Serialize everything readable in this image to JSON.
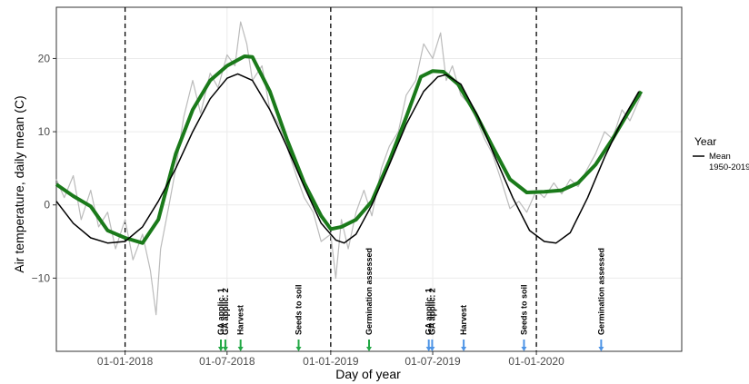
{
  "chart_data": {
    "type": "line",
    "title": "",
    "xlabel": "Day of year",
    "ylabel": "Air temperature, daily mean (C)",
    "xlim": [
      "2017-09-01",
      "2020-09-15"
    ],
    "ylim": [
      -20,
      27
    ],
    "grid": true,
    "x_ticks": [
      {
        "date": "2018-01-01",
        "label": "01-01-2018"
      },
      {
        "date": "2018-07-01",
        "label": "01-07-2018"
      },
      {
        "date": "2019-01-01",
        "label": "01-01-2019"
      },
      {
        "date": "2019-07-01",
        "label": "01-07-2019"
      },
      {
        "date": "2020-01-01",
        "label": "01-01-2020"
      }
    ],
    "y_ticks": [
      -10,
      0,
      10,
      20
    ],
    "vlines": [
      "2018-01-01",
      "2019-01-01",
      "2020-01-01"
    ],
    "legend": {
      "title": "Year",
      "position": "right",
      "entries": [
        {
          "label_lines": [
            "Mean",
            "1950-2019"
          ],
          "color": "#000000"
        }
      ]
    },
    "series": [
      {
        "name": "Mean 1950-2019",
        "color": "#000000",
        "points": [
          [
            "2017-09-01",
            0.5
          ],
          [
            "2017-10-01",
            -2.5
          ],
          [
            "2017-11-01",
            -4.5
          ],
          [
            "2017-12-01",
            -5.2
          ],
          [
            "2018-01-01",
            -5.0
          ],
          [
            "2018-02-01",
            -3.0
          ],
          [
            "2018-03-01",
            0.5
          ],
          [
            "2018-04-01",
            5.0
          ],
          [
            "2018-05-01",
            10.0
          ],
          [
            "2018-06-01",
            14.5
          ],
          [
            "2018-07-01",
            17.3
          ],
          [
            "2018-07-20",
            17.9
          ],
          [
            "2018-08-15",
            17.0
          ],
          [
            "2018-09-15",
            13.0
          ],
          [
            "2018-10-15",
            8.0
          ],
          [
            "2018-11-15",
            2.5
          ],
          [
            "2018-12-15",
            -2.5
          ],
          [
            "2019-01-10",
            -4.8
          ],
          [
            "2019-01-25",
            -5.2
          ],
          [
            "2019-02-15",
            -4.0
          ],
          [
            "2019-03-15",
            0.0
          ],
          [
            "2019-04-15",
            5.5
          ],
          [
            "2019-05-15",
            11.0
          ],
          [
            "2019-06-15",
            15.5
          ],
          [
            "2019-07-10",
            17.5
          ],
          [
            "2019-07-25",
            17.8
          ],
          [
            "2019-08-20",
            16.5
          ],
          [
            "2019-09-20",
            12.0
          ],
          [
            "2019-10-20",
            6.5
          ],
          [
            "2019-11-20",
            1.0
          ],
          [
            "2019-12-20",
            -3.5
          ],
          [
            "2020-01-15",
            -5.0
          ],
          [
            "2020-02-05",
            -5.2
          ],
          [
            "2020-03-01",
            -3.8
          ],
          [
            "2020-04-01",
            1.0
          ],
          [
            "2020-05-01",
            6.5
          ],
          [
            "2020-06-01",
            11.5
          ],
          [
            "2020-07-01",
            15.5
          ]
        ]
      },
      {
        "name": "",
        "color": "#1a7a1a",
        "points": [
          [
            "2017-09-01",
            2.8
          ],
          [
            "2017-10-01",
            1.2
          ],
          [
            "2017-11-01",
            -0.2
          ],
          [
            "2017-12-01",
            -3.5
          ],
          [
            "2018-01-01",
            -4.5
          ],
          [
            "2018-02-01",
            -5.2
          ],
          [
            "2018-03-01",
            -2.0
          ],
          [
            "2018-04-01",
            7.0
          ],
          [
            "2018-05-01",
            13.0
          ],
          [
            "2018-06-01",
            17.0
          ],
          [
            "2018-07-01",
            19.0
          ],
          [
            "2018-08-01",
            20.3
          ],
          [
            "2018-08-15",
            20.2
          ],
          [
            "2018-09-15",
            15.5
          ],
          [
            "2018-10-15",
            9.0
          ],
          [
            "2018-11-15",
            3.0
          ],
          [
            "2018-12-15",
            -1.5
          ],
          [
            "2019-01-01",
            -3.3
          ],
          [
            "2019-01-20",
            -3.0
          ],
          [
            "2019-02-15",
            -2.0
          ],
          [
            "2019-03-15",
            0.5
          ],
          [
            "2019-04-15",
            6.0
          ],
          [
            "2019-05-15",
            12.0
          ],
          [
            "2019-06-10",
            17.5
          ],
          [
            "2019-07-01",
            18.3
          ],
          [
            "2019-07-20",
            18.2
          ],
          [
            "2019-08-15",
            16.5
          ],
          [
            "2019-09-15",
            12.5
          ],
          [
            "2019-10-15",
            8.0
          ],
          [
            "2019-11-15",
            3.5
          ],
          [
            "2019-12-15",
            1.7
          ],
          [
            "2020-01-15",
            1.8
          ],
          [
            "2020-02-15",
            2.0
          ],
          [
            "2020-03-15",
            3.0
          ],
          [
            "2020-04-15",
            5.5
          ],
          [
            "2020-05-15",
            9.0
          ],
          [
            "2020-06-15",
            13.0
          ],
          [
            "2020-07-05",
            15.5
          ]
        ]
      },
      {
        "name": "",
        "color": "#bbbbbb",
        "points": [
          [
            "2017-09-01",
            3.5
          ],
          [
            "2017-09-15",
            1.0
          ],
          [
            "2017-10-01",
            4.0
          ],
          [
            "2017-10-15",
            -2.0
          ],
          [
            "2017-11-01",
            2.0
          ],
          [
            "2017-11-15",
            -3.0
          ],
          [
            "2017-12-01",
            -1.0
          ],
          [
            "2017-12-15",
            -6.0
          ],
          [
            "2018-01-01",
            -2.0
          ],
          [
            "2018-01-15",
            -7.5
          ],
          [
            "2018-02-01",
            -4.0
          ],
          [
            "2018-02-15",
            -9.0
          ],
          [
            "2018-02-25",
            -15.0
          ],
          [
            "2018-03-05",
            -6.0
          ],
          [
            "2018-03-20",
            0.0
          ],
          [
            "2018-04-01",
            5.0
          ],
          [
            "2018-04-15",
            12.0
          ],
          [
            "2018-05-01",
            17.0
          ],
          [
            "2018-05-15",
            12.5
          ],
          [
            "2018-06-01",
            18.0
          ],
          [
            "2018-06-15",
            16.0
          ],
          [
            "2018-07-01",
            20.5
          ],
          [
            "2018-07-15",
            19.0
          ],
          [
            "2018-07-25",
            25.0
          ],
          [
            "2018-08-05",
            22.0
          ],
          [
            "2018-08-15",
            17.0
          ],
          [
            "2018-09-01",
            19.0
          ],
          [
            "2018-09-15",
            13.0
          ],
          [
            "2018-10-01",
            11.0
          ],
          [
            "2018-10-15",
            8.0
          ],
          [
            "2018-11-01",
            4.0
          ],
          [
            "2018-11-15",
            1.0
          ],
          [
            "2018-12-01",
            -1.0
          ],
          [
            "2018-12-15",
            -5.0
          ],
          [
            "2019-01-01",
            -4.0
          ],
          [
            "2019-01-10",
            -10.0
          ],
          [
            "2019-01-20",
            -2.0
          ],
          [
            "2019-02-01",
            -6.0
          ],
          [
            "2019-02-15",
            -1.0
          ],
          [
            "2019-03-01",
            2.0
          ],
          [
            "2019-03-15",
            -1.5
          ],
          [
            "2019-04-01",
            5.0
          ],
          [
            "2019-04-15",
            8.0
          ],
          [
            "2019-05-01",
            10.0
          ],
          [
            "2019-05-15",
            15.0
          ],
          [
            "2019-06-01",
            17.0
          ],
          [
            "2019-06-15",
            22.0
          ],
          [
            "2019-07-01",
            20.0
          ],
          [
            "2019-07-15",
            23.5
          ],
          [
            "2019-07-25",
            17.0
          ],
          [
            "2019-08-05",
            19.0
          ],
          [
            "2019-08-20",
            15.0
          ],
          [
            "2019-09-01",
            14.0
          ],
          [
            "2019-09-15",
            12.0
          ],
          [
            "2019-10-01",
            9.0
          ],
          [
            "2019-10-15",
            7.0
          ],
          [
            "2019-11-01",
            3.0
          ],
          [
            "2019-11-15",
            -0.5
          ],
          [
            "2019-12-01",
            0.5
          ],
          [
            "2019-12-15",
            -1.0
          ],
          [
            "2020-01-01",
            2.0
          ],
          [
            "2020-01-15",
            1.0
          ],
          [
            "2020-02-01",
            3.0
          ],
          [
            "2020-02-15",
            1.5
          ],
          [
            "2020-03-01",
            3.5
          ],
          [
            "2020-03-15",
            2.5
          ],
          [
            "2020-04-01",
            5.0
          ],
          [
            "2020-04-15",
            7.0
          ],
          [
            "2020-05-01",
            10.0
          ],
          [
            "2020-05-15",
            9.0
          ],
          [
            "2020-06-01",
            13.0
          ],
          [
            "2020-06-15",
            11.5
          ],
          [
            "2020-07-05",
            15.0
          ]
        ]
      }
    ],
    "annotations": [
      {
        "label": "GA applic. 1",
        "date": "2018-06-20",
        "color": "#22a845"
      },
      {
        "label": "GA applic. 2",
        "date": "2018-06-28",
        "color": "#22a845"
      },
      {
        "label": "Harvest",
        "date": "2018-07-25",
        "color": "#22a845"
      },
      {
        "label": "Seeds to soil",
        "date": "2018-11-05",
        "color": "#22a845"
      },
      {
        "label": "Germination assessed",
        "date": "2019-03-10",
        "color": "#22a845"
      },
      {
        "label": "GA applic. 1",
        "date": "2019-06-24",
        "color": "#4d94e6"
      },
      {
        "label": "GA applic. 2",
        "date": "2019-06-30",
        "color": "#4d94e6"
      },
      {
        "label": "Harvest",
        "date": "2019-08-25",
        "color": "#4d94e6"
      },
      {
        "label": "Seeds to soil",
        "date": "2019-12-10",
        "color": "#4d94e6"
      },
      {
        "label": "Germination assessed",
        "date": "2020-04-25",
        "color": "#4d94e6"
      }
    ]
  }
}
